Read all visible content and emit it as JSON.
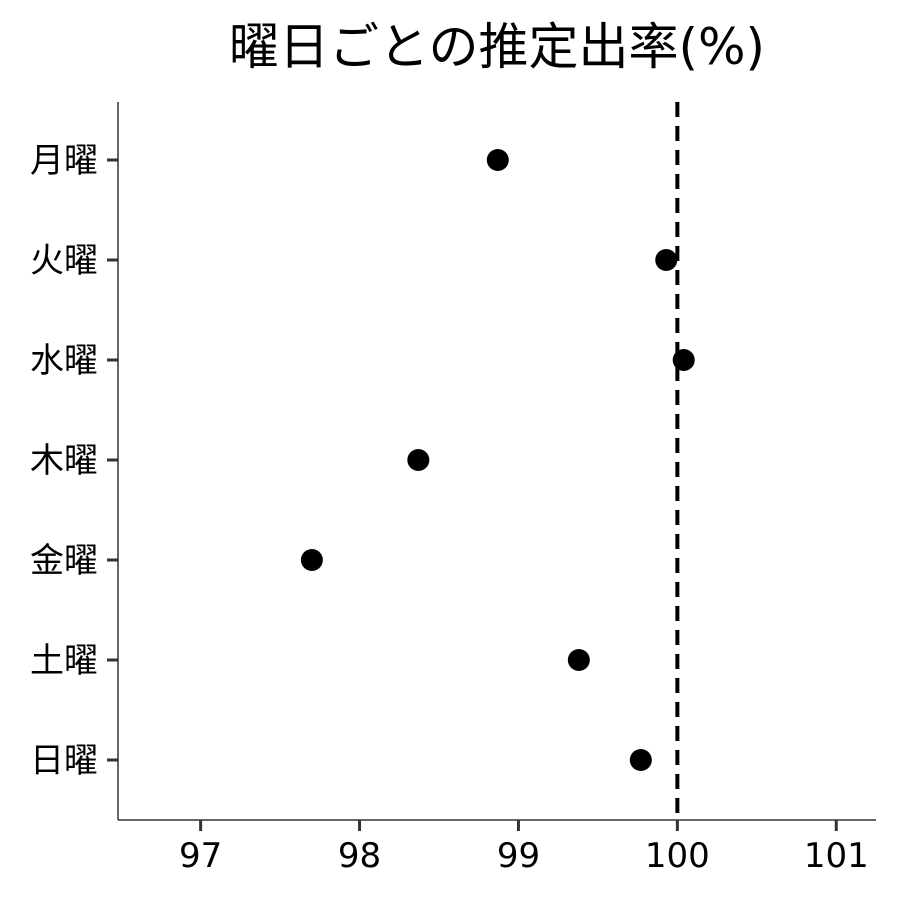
{
  "chart_data": {
    "type": "scatter",
    "title": "曜日ごとの推定出率(%)",
    "xlabel": "",
    "ylabel": "",
    "xlim": [
      96.48,
      101.25
    ],
    "x_ticks": [
      "97",
      "98",
      "99",
      "100",
      "101"
    ],
    "categories": [
      "月曜",
      "火曜",
      "水曜",
      "木曜",
      "金曜",
      "土曜",
      "日曜"
    ],
    "values": [
      98.87,
      99.93,
      100.04,
      98.37,
      97.7,
      99.38,
      99.77
    ],
    "reference_line": {
      "x": 100,
      "style": "dashed",
      "color": "#000000"
    },
    "grid": false,
    "legend": "none",
    "point_color": "#000000"
  }
}
